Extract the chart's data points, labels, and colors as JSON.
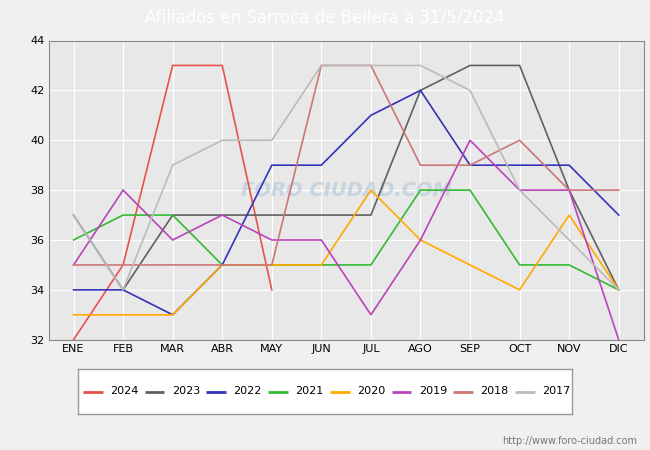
{
  "title": "Afiliados en Sarroca de Bellera a 31/5/2024",
  "title_bg_color": "#5b9bd5",
  "title_text_color": "white",
  "months": [
    "ENE",
    "FEB",
    "MAR",
    "ABR",
    "MAY",
    "JUN",
    "JUL",
    "AGO",
    "SEP",
    "OCT",
    "NOV",
    "DIC"
  ],
  "ylim": [
    32,
    44
  ],
  "yticks": [
    32,
    34,
    36,
    38,
    40,
    42,
    44
  ],
  "series": {
    "2024": {
      "color": "#e8524a",
      "data": [
        32,
        35,
        43,
        43,
        34,
        null,
        null,
        null,
        null,
        null,
        null,
        null
      ]
    },
    "2023": {
      "color": "#606060",
      "data": [
        37,
        34,
        37,
        37,
        37,
        37,
        37,
        42,
        43,
        43,
        38,
        34
      ]
    },
    "2022": {
      "color": "#3333bb",
      "data": [
        34,
        34,
        33,
        35,
        39,
        39,
        41,
        42,
        39,
        39,
        39,
        37
      ]
    },
    "2021": {
      "color": "#33bb33",
      "data": [
        36,
        37,
        37,
        35,
        35,
        35,
        35,
        38,
        38,
        35,
        35,
        34
      ]
    },
    "2020": {
      "color": "#ffaa00",
      "data": [
        33,
        33,
        33,
        35,
        35,
        35,
        38,
        36,
        35,
        34,
        37,
        34
      ]
    },
    "2019": {
      "color": "#bb44bb",
      "data": [
        35,
        38,
        36,
        37,
        36,
        36,
        33,
        36,
        40,
        38,
        38,
        32
      ]
    },
    "2018": {
      "color": "#cc7777",
      "data": [
        35,
        35,
        35,
        35,
        35,
        43,
        43,
        39,
        39,
        40,
        38,
        38
      ]
    },
    "2017": {
      "color": "#bbbbbb",
      "data": [
        37,
        34,
        39,
        40,
        40,
        43,
        43,
        43,
        42,
        38,
        36,
        34
      ]
    }
  },
  "watermark": "FORO CIUDAD.COM",
  "url": "http://www.foro-ciudad.com",
  "outer_bg_color": "#f0f0f0",
  "plot_bg_color": "#e8e8e8",
  "inner_plot_bg_color": "white",
  "grid_color": "#d8d8d8"
}
